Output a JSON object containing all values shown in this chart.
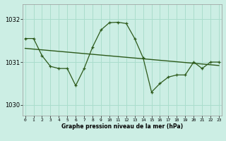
{
  "x": [
    0,
    1,
    2,
    3,
    4,
    5,
    6,
    7,
    8,
    9,
    10,
    11,
    12,
    13,
    14,
    15,
    16,
    17,
    18,
    19,
    20,
    21,
    22,
    23
  ],
  "main_y": [
    1031.55,
    1031.55,
    1031.15,
    1030.9,
    1030.85,
    1030.85,
    1030.45,
    1030.85,
    1031.35,
    1031.75,
    1031.92,
    1031.93,
    1031.9,
    1031.55,
    1031.1,
    1030.3,
    1030.5,
    1030.65,
    1030.7,
    1030.7,
    1031.0,
    1030.85,
    1031.0,
    1031.0
  ],
  "trend_x": [
    0,
    23
  ],
  "trend_y": [
    1031.32,
    1030.92
  ],
  "line_color": "#2d5a1b",
  "bg_color": "#cceee4",
  "grid_color": "#aaddcc",
  "title": "Graphe pression niveau de la mer (hPa)",
  "xlabel_ticks": [
    "0",
    "1",
    "2",
    "3",
    "4",
    "5",
    "6",
    "7",
    "8",
    "9",
    "10",
    "11",
    "12",
    "13",
    "14",
    "15",
    "16",
    "17",
    "18",
    "19",
    "20",
    "21",
    "22",
    "23"
  ],
  "yticks": [
    1030,
    1031,
    1032
  ],
  "ylim": [
    1029.75,
    1032.35
  ],
  "xlim": [
    -0.3,
    23.3
  ]
}
